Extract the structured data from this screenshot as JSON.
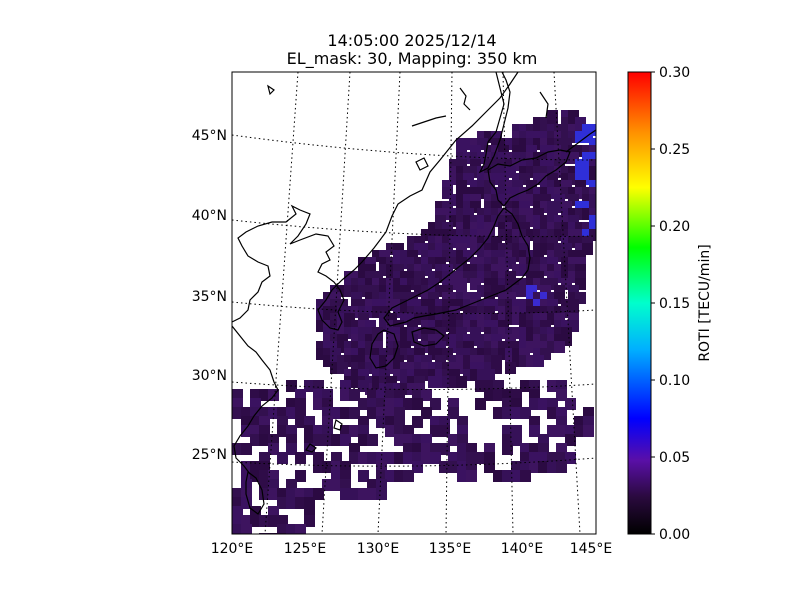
{
  "title": {
    "line1": "14:05:00 2025/12/14",
    "line2": "EL_mask: 30, Mapping: 350 km"
  },
  "map": {
    "lon_ticks": [
      "120°E",
      "125°E",
      "130°E",
      "135°E",
      "140°E",
      "145°E"
    ],
    "lat_ticks": [
      "25°N",
      "30°N",
      "35°N",
      "40°N",
      "45°N"
    ],
    "lon_range": [
      120,
      145
    ],
    "lat_range": [
      20,
      49
    ],
    "graticule": "dotted"
  },
  "colorbar": {
    "label": "ROTI [TECU/min]",
    "ticks": [
      "0.00",
      "0.05",
      "0.10",
      "0.15",
      "0.20",
      "0.25",
      "0.30"
    ],
    "range": [
      0,
      0.3
    ],
    "colormap": [
      "#000000",
      "#2a0a3e",
      "#5a0fa8",
      "#0000ff",
      "#00ffff",
      "#00ff00",
      "#ffff00",
      "#ff8000",
      "#ff0000"
    ]
  },
  "chart_data": {
    "type": "heatmap",
    "title": "14:05:00 2025/12/14",
    "subtitle": "EL_mask: 30, Mapping: 350 km",
    "xlabel": "",
    "ylabel": "",
    "xlim": [
      120,
      145
    ],
    "ylim": [
      20,
      49
    ],
    "value_label": "ROTI [TECU/min]",
    "value_range": [
      0,
      0.3
    ],
    "typical_value": 0.03,
    "max_region_value": 0.06
  }
}
